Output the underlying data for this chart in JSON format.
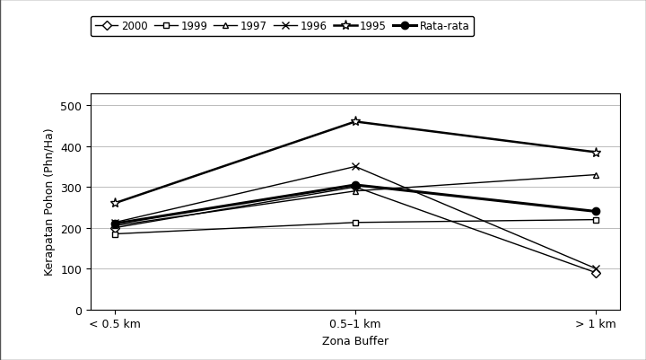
{
  "x_labels": [
    "< 0.5 km",
    "0.5–1 km",
    "> 1 km"
  ],
  "x_positions": [
    0,
    1,
    2
  ],
  "series": [
    {
      "label": "2000",
      "values": [
        200,
        300,
        90
      ],
      "marker": "D",
      "markersize": 5,
      "markerfacecolor": "white",
      "linewidth": 1.0
    },
    {
      "label": "1999",
      "values": [
        185,
        213,
        220
      ],
      "marker": "s",
      "markersize": 5,
      "markerfacecolor": "white",
      "linewidth": 1.0
    },
    {
      "label": "1997",
      "values": [
        205,
        290,
        330
      ],
      "marker": "^",
      "markersize": 5,
      "markerfacecolor": "white",
      "linewidth": 1.0
    },
    {
      "label": "1996",
      "values": [
        213,
        350,
        100
      ],
      "marker": "x",
      "markersize": 6,
      "markerfacecolor": "black",
      "linewidth": 1.0
    },
    {
      "label": "1995",
      "values": [
        260,
        460,
        385
      ],
      "marker": "*",
      "markersize": 8,
      "markerfacecolor": "white",
      "linewidth": 1.8
    },
    {
      "label": "Rata-rata",
      "values": [
        210,
        305,
        240
      ],
      "marker": "o",
      "markersize": 6,
      "markerfacecolor": "black",
      "linewidth": 2.2
    }
  ],
  "ylabel": "Kerapatan Pohon (Phn/Ha)",
  "xlabel": "Zona Buffer",
  "ylim": [
    0,
    530
  ],
  "yticks": [
    0,
    100,
    200,
    300,
    400,
    500
  ],
  "background_color": "#ffffff",
  "outer_box_color": "#555555",
  "grid_color": "#bbbbbb"
}
